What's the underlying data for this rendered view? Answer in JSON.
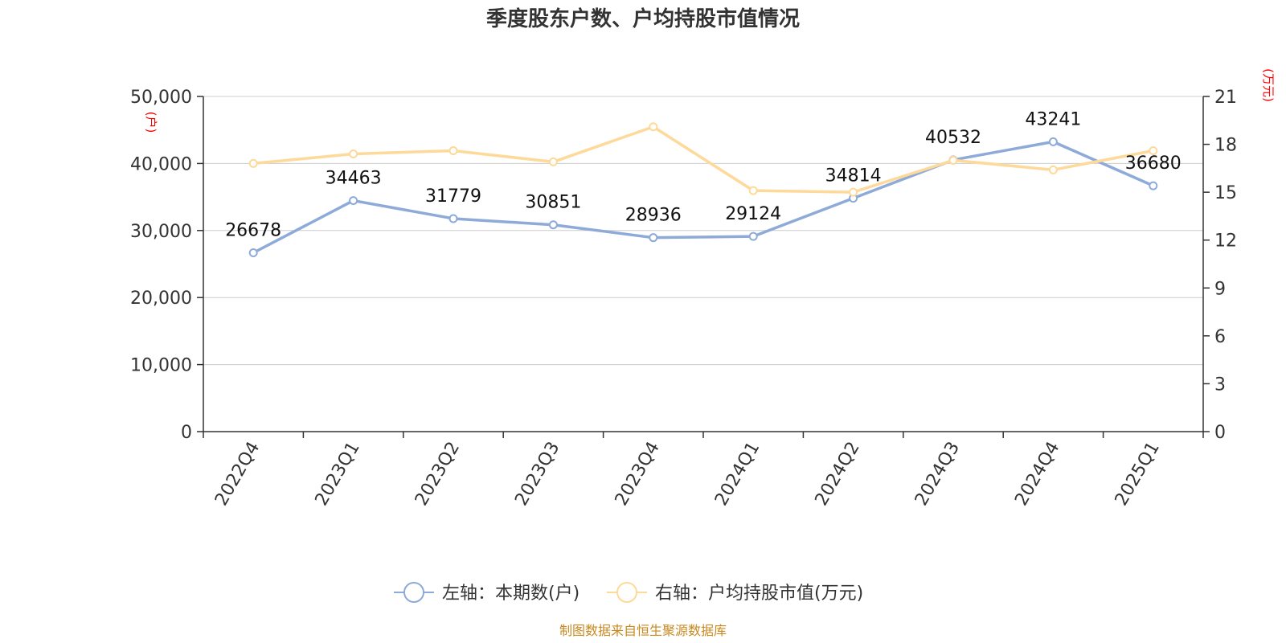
{
  "chart_data": {
    "type": "line",
    "title": "季度股东户数、户均持股市值情况",
    "categories": [
      "2022Q4",
      "2023Q1",
      "2023Q2",
      "2023Q3",
      "2023Q4",
      "2024Q1",
      "2024Q2",
      "2024Q3",
      "2024Q4",
      "2025Q1"
    ],
    "left_axis": {
      "unit": "(户)",
      "ylim": [
        0,
        50000
      ],
      "ticks": [
        "0",
        "10,000",
        "20,000",
        "30,000",
        "40,000",
        "50,000"
      ]
    },
    "right_axis": {
      "unit": "(万元)",
      "ylim": [
        0,
        21
      ],
      "ticks": [
        "0",
        "3",
        "6",
        "9",
        "12",
        "15",
        "18",
        "21"
      ]
    },
    "series": [
      {
        "name": "左轴：本期数(户)",
        "axis": "left",
        "color": "#8eaad8",
        "values": [
          26678,
          34463,
          31779,
          30851,
          28936,
          29124,
          34814,
          40532,
          43241,
          36680
        ],
        "labels": [
          "26678",
          "34463",
          "31779",
          "30851",
          "28936",
          "29124",
          "34814",
          "40532",
          "43241",
          "36680"
        ]
      },
      {
        "name": "右轴：户均持股市值(万元)",
        "axis": "right",
        "color": "#fdd99a",
        "values": [
          16.8,
          17.4,
          17.6,
          16.9,
          19.1,
          15.1,
          15.0,
          17.0,
          16.4,
          17.6
        ]
      }
    ],
    "grid": true,
    "legend_position": "bottom",
    "source": "制图数据来自恒生聚源数据库"
  }
}
